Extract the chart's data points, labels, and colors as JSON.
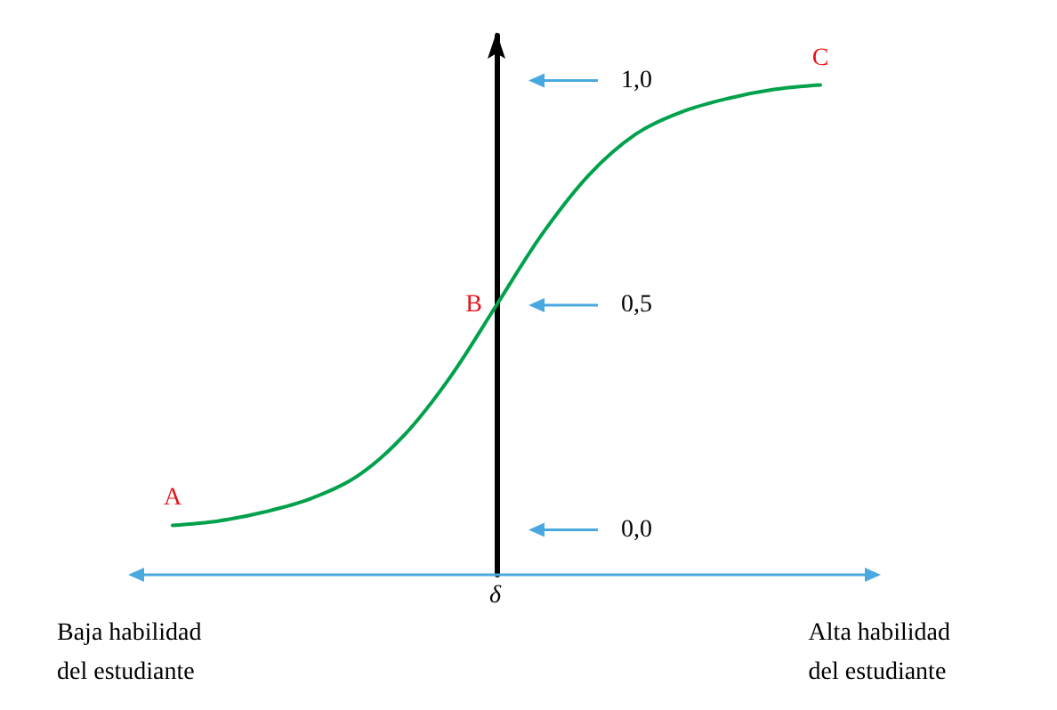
{
  "chart_data": {
    "type": "line",
    "categories": [
      null,
      null,
      null,
      null,
      null,
      null,
      null,
      null,
      null,
      null,
      null,
      null,
      null,
      null,
      null
    ],
    "series": [
      {
        "color": "#00a14b",
        "values": [
          0.01,
          0.02,
          0.04,
          0.07,
          0.12,
          0.21,
          0.34,
          0.5,
          0.66,
          0.79,
          0.88,
          0.93,
          0.96,
          0.98,
          0.99
        ]
      }
    ],
    "ylim": [
      -0.1,
      1.1
    ],
    "yticks": [
      {
        "value": 0,
        "label": "0,0"
      },
      {
        "value": 0.5,
        "label": "0,5"
      },
      {
        "value": 1,
        "label": "1,0"
      }
    ],
    "annotations": [
      "A",
      "B",
      "C",
      "δ",
      "Baja habilidad\ndel estudiante",
      "Alta habilidad\ndel estudiante"
    ],
    "tick_labels": "y",
    "grid": false,
    "marker": "none",
    "line_style": "solid"
  }
}
